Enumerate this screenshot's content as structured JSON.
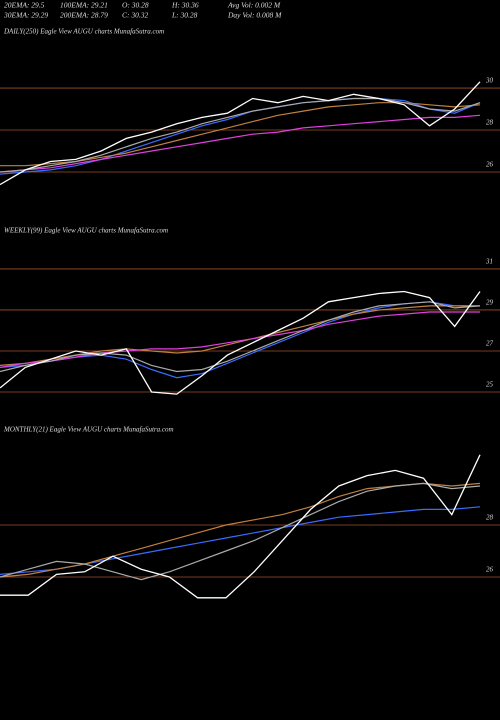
{
  "header": {
    "rows": [
      [
        "20EMA: 29.5",
        "100EMA: 29.21",
        "O: 30.28",
        "H: 30.36",
        "Avg Vol: 0.002 M"
      ],
      [
        "30EMA: 29.29",
        "200EMA: 28.79",
        "C: 30.32",
        "L: 30.28",
        "Day Vol: 0.008 M"
      ]
    ]
  },
  "chart_data": [
    {
      "type": "line",
      "title": "DAILY(250) Eagle  View  AUGU charts MunafaSutra.com",
      "ylim": [
        23.95,
        32.29
      ],
      "yticks": [
        26,
        28,
        30
      ],
      "grid": true,
      "series": [
        {
          "color": "#3a6bff",
          "values": [
            25.9,
            26.0,
            26.1,
            26.3,
            26.6,
            27.0,
            27.4,
            27.8,
            28.2,
            28.5,
            28.9,
            29.1,
            29.3,
            29.4,
            29.5,
            29.5,
            29.4,
            29.0,
            28.8,
            29.3
          ]
        },
        {
          "color": "#c08040",
          "values": [
            26.3,
            26.3,
            26.4,
            26.5,
            26.7,
            26.9,
            27.2,
            27.5,
            27.8,
            28.1,
            28.4,
            28.7,
            28.9,
            29.1,
            29.2,
            29.3,
            29.3,
            29.2,
            29.1,
            29.2
          ]
        },
        {
          "color": "#e040e0",
          "values": [
            26.0,
            26.1,
            26.2,
            26.4,
            26.6,
            26.8,
            27.0,
            27.2,
            27.4,
            27.6,
            27.8,
            27.9,
            28.1,
            28.2,
            28.3,
            28.4,
            28.5,
            28.6,
            28.6,
            28.7
          ]
        },
        {
          "color": "#aaaaaa",
          "values": [
            26.0,
            26.1,
            26.3,
            26.5,
            26.8,
            27.2,
            27.6,
            27.9,
            28.3,
            28.6,
            28.9,
            29.1,
            29.3,
            29.4,
            29.5,
            29.5,
            29.3,
            29.0,
            28.9,
            29.3
          ]
        },
        {
          "color": "#ffffff",
          "values": [
            25.4,
            26.1,
            26.5,
            26.6,
            27.0,
            27.6,
            27.9,
            28.3,
            28.6,
            28.8,
            29.5,
            29.3,
            29.6,
            29.4,
            29.7,
            29.5,
            29.2,
            28.2,
            29.0,
            30.3
          ]
        }
      ]
    },
    {
      "type": "line",
      "title": "WEEKLY(99) Eagle  View  AUGU charts MunafaSutra.com",
      "ylim": [
        23.88,
        32.41
      ],
      "yticks": [
        25,
        27,
        29,
        31
      ],
      "grid": true,
      "series": [
        {
          "color": "#3a6bff",
          "values": [
            26.2,
            26.3,
            26.5,
            26.7,
            26.8,
            26.6,
            26.1,
            25.7,
            25.9,
            26.4,
            26.9,
            27.4,
            27.9,
            28.4,
            28.8,
            29.1,
            29.3,
            29.4,
            29.2,
            29.2
          ]
        },
        {
          "color": "#c08040",
          "values": [
            26.3,
            26.4,
            26.6,
            26.8,
            27.0,
            27.1,
            27.0,
            26.9,
            27.0,
            27.3,
            27.6,
            27.9,
            28.2,
            28.5,
            28.8,
            29.0,
            29.1,
            29.2,
            29.2,
            29.2
          ]
        },
        {
          "color": "#e040e0",
          "values": [
            26.2,
            26.4,
            26.5,
            26.7,
            26.9,
            27.0,
            27.1,
            27.1,
            27.2,
            27.4,
            27.6,
            27.8,
            28.0,
            28.3,
            28.5,
            28.7,
            28.8,
            28.9,
            28.9,
            28.9
          ]
        },
        {
          "color": "#aaaaaa",
          "values": [
            26.0,
            26.3,
            26.5,
            26.8,
            26.9,
            26.8,
            26.3,
            26.0,
            26.1,
            26.5,
            27.0,
            27.5,
            28.0,
            28.5,
            28.9,
            29.2,
            29.3,
            29.4,
            29.1,
            29.2
          ]
        },
        {
          "color": "#ffffff",
          "values": [
            25.2,
            26.2,
            26.6,
            27.0,
            26.8,
            27.1,
            25.0,
            24.9,
            25.8,
            26.8,
            27.4,
            28.0,
            28.6,
            29.4,
            29.6,
            29.8,
            29.9,
            29.6,
            28.2,
            29.9
          ]
        }
      ]
    },
    {
      "type": "line",
      "title": "MONTHLY(21) Eagle  View  AUGU charts MunafaSutra.com",
      "ylim": [
        20.69,
        31.27
      ],
      "yticks": [
        26,
        28
      ],
      "grid": true,
      "series": [
        {
          "color": "#3a6bff",
          "values": [
            26.1,
            26.2,
            26.3,
            26.5,
            26.7,
            26.9,
            27.1,
            27.3,
            27.5,
            27.7,
            27.9,
            28.1,
            28.3,
            28.4,
            28.5,
            28.6,
            28.6,
            28.7
          ]
        },
        {
          "color": "#c08040",
          "values": [
            26.0,
            26.1,
            26.3,
            26.5,
            26.8,
            27.1,
            27.4,
            27.7,
            28.0,
            28.2,
            28.4,
            28.7,
            29.1,
            29.4,
            29.5,
            29.6,
            29.5,
            29.6
          ]
        },
        {
          "color": "#aaaaaa",
          "values": [
            26.0,
            26.3,
            26.6,
            26.5,
            26.2,
            25.9,
            26.2,
            26.6,
            27.0,
            27.4,
            27.9,
            28.4,
            28.9,
            29.3,
            29.5,
            29.6,
            29.4,
            29.5
          ]
        },
        {
          "color": "#ffffff",
          "values": [
            25.3,
            25.3,
            26.1,
            26.2,
            26.8,
            26.3,
            26.0,
            25.2,
            25.2,
            26.2,
            27.4,
            28.6,
            29.5,
            29.9,
            30.1,
            29.8,
            28.4,
            30.7
          ]
        }
      ]
    }
  ]
}
